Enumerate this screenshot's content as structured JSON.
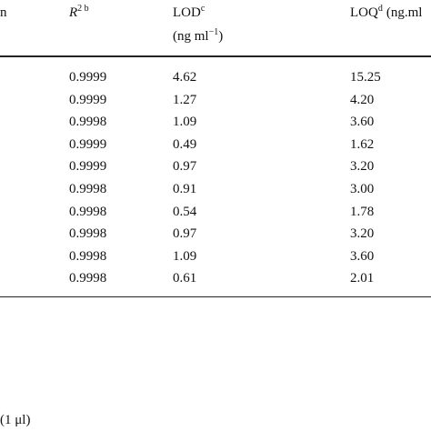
{
  "header": {
    "col0": "n",
    "r2": {
      "main": "R",
      "sup": "2 b"
    },
    "lod": {
      "main": "LOD",
      "sup": "c",
      "unit_main": "(ng ml",
      "unit_sup": "−1",
      "unit_end": ")"
    },
    "loq": {
      "main": "LOQ",
      "sup": "d",
      "rest": "(ng.ml"
    }
  },
  "table": {
    "rows": [
      [
        "0.9999",
        "4.62",
        "15.25"
      ],
      [
        "0.9999",
        "1.27",
        "4.20"
      ],
      [
        "0.9998",
        "1.09",
        "3.60"
      ],
      [
        "0.9999",
        "0.49",
        "1.62"
      ],
      [
        "0.9999",
        "0.97",
        "3.20"
      ],
      [
        "0.9998",
        "0.91",
        "3.00"
      ],
      [
        "0.9998",
        "0.54",
        "1.78"
      ],
      [
        "0.9998",
        "0.97",
        "3.20"
      ],
      [
        "0.9998",
        "1.09",
        "3.60"
      ],
      [
        "0.9998",
        "0.61",
        "2.01"
      ]
    ]
  },
  "footer": "(1 μl)"
}
